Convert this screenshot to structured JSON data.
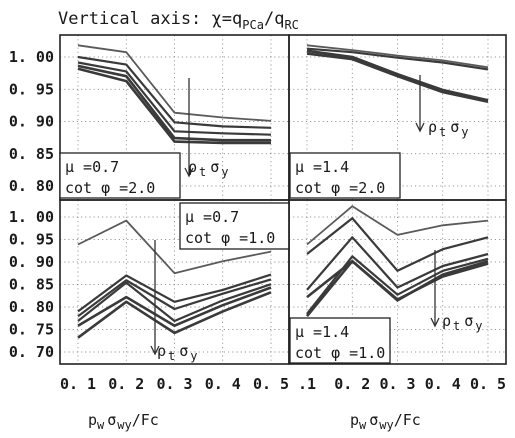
{
  "title": {
    "prefix": "Vertical axis: ",
    "chi": "χ",
    "eq": "=q",
    "sub1": "PCa",
    "slash": "/q",
    "sub2": "RC"
  },
  "x_axis_label": {
    "p": "p",
    "w1": "w",
    "sigma": "σ",
    "wy": "wy",
    "fc": "/Fc"
  },
  "rho_sigma_label": {
    "rho": "ρ",
    "t": "t",
    "sigma": "σ",
    "y": "y"
  },
  "colors": {
    "lines": "#5a5a5a",
    "heavy": "#3a3a3a"
  },
  "chart_data": [
    {
      "type": "line",
      "panel": "top-left",
      "x": [
        0.1,
        0.2,
        0.3,
        0.4,
        0.5
      ],
      "ylim": [
        0.775,
        1.015
      ],
      "yticks": [
        "1. 00",
        "0. 95",
        "0. 90",
        "0. 85",
        "0. 80"
      ],
      "xticks": [],
      "grid": true,
      "annotation": {
        "mu": "μ =0.7",
        "cot": "cot φ =2.0"
      },
      "arrow": "down",
      "series": [
        {
          "values": [
            1.0,
            0.99,
            0.902,
            0.895,
            0.89
          ]
        },
        {
          "values": [
            0.983,
            0.972,
            0.888,
            0.882,
            0.88
          ]
        },
        {
          "values": [
            0.975,
            0.962,
            0.875,
            0.872,
            0.87
          ]
        },
        {
          "values": [
            0.97,
            0.955,
            0.865,
            0.862,
            0.862
          ]
        },
        {
          "values": [
            0.966,
            0.948,
            0.86,
            0.858,
            0.858
          ]
        }
      ]
    },
    {
      "type": "line",
      "panel": "top-right",
      "x": [
        0.1,
        0.2,
        0.3,
        0.4,
        0.5
      ],
      "ylim": [
        0.775,
        1.015
      ],
      "yticks": [],
      "xticks": [],
      "grid": true,
      "annotation": {
        "mu": "μ =1.4",
        "cot": "cot φ =2.0"
      },
      "arrow": "down",
      "series": [
        {
          "values": [
            1.0,
            0.993,
            0.985,
            0.978,
            0.968
          ]
        },
        {
          "values": [
            0.995,
            0.99,
            0.982,
            0.975,
            0.965
          ]
        },
        {
          "values": [
            0.992,
            0.983,
            0.958,
            0.935,
            0.92
          ]
        },
        {
          "values": [
            0.988,
            0.98,
            0.955,
            0.932,
            0.918
          ]
        }
      ]
    },
    {
      "type": "line",
      "panel": "bottom-left",
      "x": [
        0.1,
        0.2,
        0.3,
        0.4,
        0.5
      ],
      "ylim": [
        0.675,
        1.018
      ],
      "yticks": [
        "1. 00",
        "0. 95",
        "0. 90",
        "0. 85",
        "0. 80",
        "0. 75",
        "0. 70"
      ],
      "xticks": [
        "0. 1",
        "0. 2",
        "0. 3",
        "0. 4",
        "0. 5"
      ],
      "grid": true,
      "annotation": {
        "mu": "μ =0.7",
        "cot": "cot φ =1.0"
      },
      "arrow": "down",
      "series": [
        {
          "values": [
            0.925,
            0.975,
            0.865,
            0.89,
            0.91
          ]
        },
        {
          "values": [
            0.785,
            0.86,
            0.805,
            0.83,
            0.862
          ]
        },
        {
          "values": [
            0.775,
            0.85,
            0.79,
            0.822,
            0.852
          ]
        },
        {
          "values": [
            0.765,
            0.845,
            0.765,
            0.808,
            0.842
          ]
        },
        {
          "values": [
            0.755,
            0.815,
            0.755,
            0.798,
            0.835
          ]
        },
        {
          "values": [
            0.73,
            0.805,
            0.74,
            0.785,
            0.825
          ]
        }
      ]
    },
    {
      "type": "line",
      "panel": "bottom-right",
      "x": [
        0.1,
        0.2,
        0.3,
        0.4,
        0.5
      ],
      "ylim": [
        0.675,
        1.018
      ],
      "yticks": [],
      "xticks": [
        ".1",
        "0. 2",
        "0. 3",
        "0. 4",
        "0. 5"
      ],
      "grid": true,
      "annotation": {
        "mu": "μ =1.4",
        "cot": "cot φ =1.0"
      },
      "arrow": "down",
      "series": [
        {
          "values": [
            0.925,
            1.005,
            0.945,
            0.965,
            0.975
          ]
        },
        {
          "values": [
            0.905,
            0.98,
            0.87,
            0.915,
            0.94
          ]
        },
        {
          "values": [
            0.83,
            0.94,
            0.835,
            0.88,
            0.905
          ]
        },
        {
          "values": [
            0.78,
            0.9,
            0.82,
            0.87,
            0.895
          ]
        },
        {
          "values": [
            0.775,
            0.89,
            0.808,
            0.862,
            0.89
          ]
        },
        {
          "values": [
            0.815,
            0.89,
            0.81,
            0.858,
            0.885
          ]
        }
      ]
    }
  ]
}
